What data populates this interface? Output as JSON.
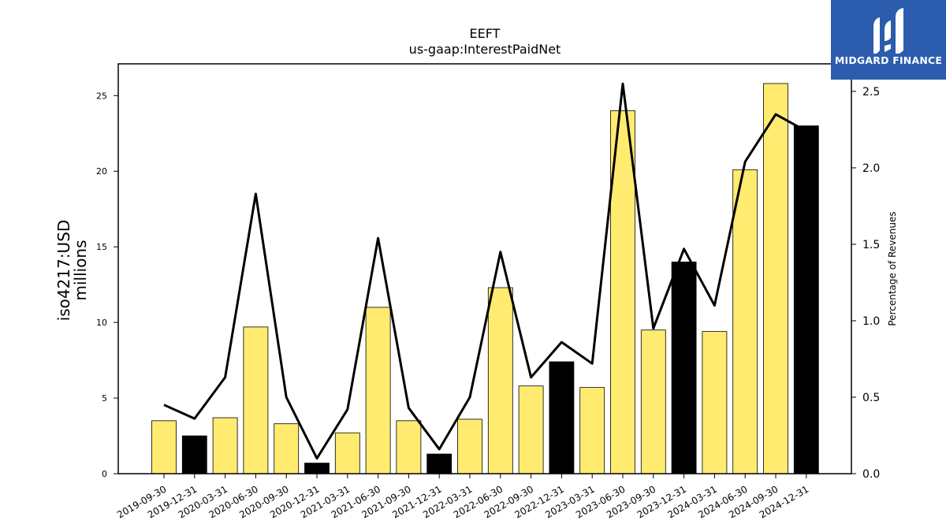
{
  "logo": {
    "text": "MIDGARD FINANCE",
    "icon": "midgard-logo-icon",
    "bg_color": "#2b5cad"
  },
  "chart_data": {
    "type": "bar",
    "title": "EEFT",
    "subtitle": "us-gaap:InterestPaidNet",
    "ylabel": "iso4217:USD",
    "ylabel2": "millions",
    "y2label": "Percentage of Revenues",
    "categories": [
      "2019-09-30",
      "2019-12-31",
      "2020-03-31",
      "2020-06-30",
      "2020-09-30",
      "2020-12-31",
      "2021-03-31",
      "2021-06-30",
      "2021-09-30",
      "2021-12-31",
      "2022-03-31",
      "2022-06-30",
      "2022-09-30",
      "2022-12-31",
      "2023-03-31",
      "2023-06-30",
      "2023-09-30",
      "2023-12-31",
      "2024-03-31",
      "2024-06-30",
      "2024-09-30",
      "2024-12-31"
    ],
    "values": [
      3.5,
      2.5,
      3.7,
      9.7,
      3.3,
      0.7,
      2.7,
      11.0,
      3.5,
      1.3,
      3.6,
      12.3,
      5.8,
      7.4,
      5.7,
      24.0,
      9.5,
      14.0,
      9.4,
      20.1,
      25.8,
      23.0
    ],
    "bar_colors": [
      "#ffeb70",
      "#000000",
      "#ffeb70",
      "#ffeb70",
      "#ffeb70",
      "#000000",
      "#ffeb70",
      "#ffeb70",
      "#ffeb70",
      "#000000",
      "#ffeb70",
      "#ffeb70",
      "#ffeb70",
      "#000000",
      "#ffeb70",
      "#ffeb70",
      "#ffeb70",
      "#000000",
      "#ffeb70",
      "#ffeb70",
      "#ffeb70",
      "#000000"
    ],
    "line_series": {
      "values": [
        0.45,
        0.36,
        0.63,
        1.83,
        0.5,
        0.1,
        0.42,
        1.54,
        0.43,
        0.16,
        0.5,
        1.45,
        0.63,
        0.86,
        0.72,
        2.55,
        0.95,
        1.47,
        1.1,
        2.04,
        2.35,
        2.24
      ],
      "color": "#000000"
    },
    "ylim": [
      0,
      27.1
    ],
    "y2lim": [
      0,
      2.68
    ],
    "yticks": [
      0,
      5,
      10,
      15,
      20,
      25
    ],
    "y2ticks": [
      "0.0",
      "0.5",
      "1.0",
      "1.5",
      "2.0",
      "2.5"
    ],
    "grid": false
  }
}
